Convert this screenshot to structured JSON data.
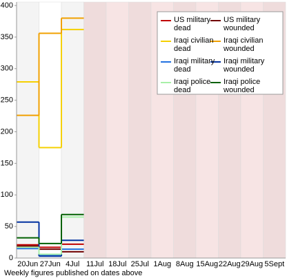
{
  "chart_data": {
    "type": "step",
    "note": "Weekly figures published on dates above",
    "categories": [
      "20Jun",
      "27Jun",
      "4Jul",
      "11Jul",
      "18Jul",
      "25Jul",
      "1Aug",
      "8Aug",
      "15Aug",
      "22Aug",
      "29Aug",
      "5Sept"
    ],
    "series": [
      {
        "name": "US military dead",
        "color": "#c00000",
        "values": [
          21,
          17,
          22,
          null,
          null,
          null,
          null,
          null,
          null,
          null,
          null,
          null
        ]
      },
      {
        "name": "US military wounded",
        "color": "#700000",
        "values": [
          19,
          14,
          10,
          null,
          null,
          null,
          null,
          null,
          null,
          null,
          null,
          null
        ]
      },
      {
        "name": "Iraqi civilian dead",
        "color": "#f5d000",
        "values": [
          279,
          175,
          362,
          null,
          null,
          null,
          null,
          null,
          null,
          null,
          null,
          null
        ]
      },
      {
        "name": "Iraqi civilian wounded",
        "color": "#f0a000",
        "values": [
          226,
          356,
          380,
          null,
          null,
          null,
          null,
          null,
          null,
          null,
          null,
          null
        ]
      },
      {
        "name": "Iraqi military dead",
        "color": "#2070e0",
        "values": [
          15,
          5,
          14,
          null,
          null,
          null,
          null,
          null,
          null,
          null,
          null,
          null
        ]
      },
      {
        "name": "Iraqi military wounded",
        "color": "#0030a0",
        "values": [
          57,
          3,
          28,
          null,
          null,
          null,
          null,
          null,
          null,
          null,
          null,
          null
        ]
      },
      {
        "name": "Iraqi police dead",
        "color": "#a8f0a8",
        "values": [
          17,
          6,
          65,
          null,
          null,
          null,
          null,
          null,
          null,
          null,
          null,
          null
        ]
      },
      {
        "name": "Iraqi police wounded",
        "color": "#006000",
        "values": [
          32,
          23,
          69,
          null,
          null,
          null,
          null,
          null,
          null,
          null,
          null,
          null
        ]
      }
    ],
    "ylim": [
      0,
      400
    ],
    "yticks": [
      0,
      50,
      100,
      150,
      200,
      250,
      300,
      350,
      400
    ],
    "legend": "top-right"
  }
}
